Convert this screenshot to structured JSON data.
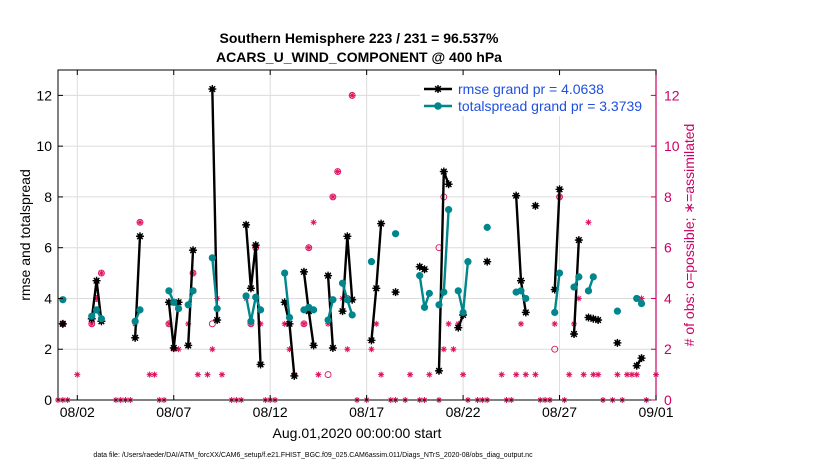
{
  "chart_data": {
    "type": "line",
    "title": "Southern Hemisphere 223 / 231 = 96.537%",
    "subtitle": "ACARS_U_WIND_COMPONENT @ 400 hPa",
    "xlabel": "Aug.01,2020 00:00:00 start",
    "ylabel": "rmse and totalspread",
    "y2label": "# of obs: o=possible; ∗=assimilated",
    "footer": "data file: /Users/raeder/DAI/ATM_forcXX/CAM6_setup/f.e21.FHIST_BGC.f09_025.CAM6assim.011/Diags_NTrS_2020-08/obs_diag_output.nc",
    "xlim": [
      0,
      31
    ],
    "ylim": [
      0,
      13
    ],
    "y2lim": [
      0,
      13
    ],
    "xticks": [
      1,
      6,
      11,
      16,
      21,
      26,
      31
    ],
    "xtick_labels": [
      "08/02",
      "08/07",
      "08/12",
      "08/17",
      "08/22",
      "08/27",
      "09/01"
    ],
    "yticks": [
      0,
      2,
      4,
      6,
      8,
      10,
      12
    ],
    "ytick_labels": [
      "0",
      "2",
      "4",
      "6",
      "8",
      "10",
      "12"
    ],
    "y2ticks": [
      0,
      2,
      4,
      6,
      8,
      10,
      12
    ],
    "y2tick_labels": [
      "0",
      "2",
      "4",
      "6",
      "8",
      "10",
      "12"
    ],
    "grid": true,
    "legend_position": "top-right",
    "colors": {
      "rmse": "#000000",
      "spread": "#00868b",
      "obs": "#e0105f",
      "legend_text": "#1f4fe0",
      "right_axis": "#cc0066"
    },
    "series": [
      {
        "name": "rmse grand pr = 4.0638",
        "color": "#000000",
        "segments": [
          [
            [
              0.25,
              3.0
            ]
          ],
          [
            [
              1.75,
              3.2
            ],
            [
              2.0,
              4.7
            ],
            [
              2.25,
              3.1
            ]
          ],
          [
            [
              4.0,
              2.45
            ],
            [
              4.25,
              6.45
            ]
          ],
          [
            [
              5.75,
              3.85
            ],
            [
              6.0,
              2.05
            ],
            [
              6.25,
              3.85
            ]
          ],
          [
            [
              6.75,
              2.15
            ],
            [
              7.0,
              5.9
            ]
          ],
          [
            [
              8.0,
              12.25
            ],
            [
              8.25,
              3.15
            ]
          ],
          [
            [
              9.75,
              6.9
            ],
            [
              10.0,
              4.4
            ],
            [
              10.25,
              6.1
            ],
            [
              10.5,
              1.4
            ]
          ],
          [
            [
              11.75,
              3.85
            ],
            [
              12.0,
              3.0
            ],
            [
              12.25,
              0.95
            ]
          ],
          [
            [
              12.75,
              5.05
            ],
            [
              13.0,
              3.5
            ],
            [
              13.25,
              2.15
            ]
          ],
          [
            [
              14.0,
              4.9
            ],
            [
              14.25,
              2.05
            ]
          ],
          [
            [
              14.75,
              3.5
            ],
            [
              15.0,
              6.45
            ],
            [
              15.25,
              3.95
            ]
          ],
          [
            [
              16.25,
              2.35
            ],
            [
              16.5,
              4.4
            ],
            [
              16.75,
              6.95
            ]
          ],
          [
            [
              17.5,
              4.25
            ]
          ],
          [
            [
              18.75,
              5.25
            ],
            [
              19.0,
              5.15
            ]
          ],
          [
            [
              19.75,
              1.15
            ],
            [
              20.0,
              9.0
            ],
            [
              20.25,
              8.5
            ]
          ],
          [
            [
              20.75,
              2.85
            ],
            [
              21.0,
              3.35
            ]
          ],
          [
            [
              22.25,
              5.45
            ]
          ],
          [
            [
              23.75,
              8.05
            ],
            [
              24.0,
              4.7
            ],
            [
              24.25,
              3.45
            ]
          ],
          [
            [
              24.75,
              7.65
            ]
          ],
          [
            [
              25.75,
              4.35
            ],
            [
              26.0,
              8.3
            ]
          ],
          [
            [
              26.75,
              2.6
            ],
            [
              27.0,
              6.3
            ]
          ],
          [
            [
              27.5,
              3.25
            ],
            [
              27.75,
              3.2
            ],
            [
              28.0,
              3.15
            ]
          ],
          [
            [
              29.0,
              2.25
            ]
          ],
          [
            [
              30.0,
              1.35
            ],
            [
              30.25,
              1.65
            ]
          ]
        ]
      },
      {
        "name": "totalspread grand pr = 3.3739",
        "color": "#00868b",
        "segments": [
          [
            [
              0.25,
              3.95
            ]
          ],
          [
            [
              1.75,
              3.3
            ],
            [
              2.0,
              3.55
            ],
            [
              2.25,
              3.2
            ]
          ],
          [
            [
              4.0,
              3.1
            ],
            [
              4.25,
              3.55
            ]
          ],
          [
            [
              5.75,
              4.3
            ],
            [
              6.0,
              3.85
            ],
            [
              6.25,
              3.6
            ]
          ],
          [
            [
              6.75,
              3.75
            ],
            [
              7.0,
              4.3
            ]
          ],
          [
            [
              8.0,
              5.6
            ],
            [
              8.25,
              3.6
            ]
          ],
          [
            [
              9.75,
              4.1
            ],
            [
              10.0,
              3.1
            ],
            [
              10.25,
              4.05
            ],
            [
              10.5,
              3.55
            ]
          ],
          [
            [
              11.75,
              5.0
            ],
            [
              12.0,
              3.25
            ]
          ],
          [
            [
              12.75,
              3.55
            ],
            [
              13.0,
              3.65
            ],
            [
              13.25,
              3.55
            ]
          ],
          [
            [
              14.0,
              3.15
            ],
            [
              14.25,
              3.95
            ]
          ],
          [
            [
              14.75,
              4.6
            ],
            [
              15.0,
              3.95
            ],
            [
              15.25,
              3.35
            ]
          ],
          [
            [
              16.25,
              5.45
            ]
          ],
          [
            [
              17.5,
              6.55
            ]
          ],
          [
            [
              18.75,
              4.9
            ],
            [
              19.0,
              3.65
            ],
            [
              19.25,
              4.2
            ]
          ],
          [
            [
              19.75,
              3.75
            ],
            [
              20.0,
              4.25
            ],
            [
              20.25,
              7.5
            ]
          ],
          [
            [
              20.75,
              4.3
            ],
            [
              21.0,
              3.45
            ],
            [
              21.25,
              5.45
            ]
          ],
          [
            [
              22.25,
              6.8
            ]
          ],
          [
            [
              23.75,
              4.25
            ],
            [
              24.0,
              4.3
            ],
            [
              24.25,
              4.0
            ]
          ],
          [
            [
              25.75,
              3.45
            ],
            [
              26.0,
              5.0
            ]
          ],
          [
            [
              26.75,
              4.45
            ],
            [
              27.0,
              4.85
            ]
          ],
          [
            [
              27.5,
              4.3
            ],
            [
              27.75,
              4.85
            ]
          ],
          [
            [
              29.0,
              3.5
            ]
          ],
          [
            [
              30.0,
              4.0
            ],
            [
              30.25,
              3.8
            ]
          ]
        ]
      }
    ],
    "obs_possible": [
      [
        0.25,
        3.0
      ],
      [
        1.75,
        3.0
      ],
      [
        2.0,
        4.0
      ],
      [
        2.25,
        5.0
      ],
      [
        4.25,
        7.0
      ],
      [
        5.75,
        3.0
      ],
      [
        7.0,
        5.0
      ],
      [
        8.0,
        3.0
      ],
      [
        10.0,
        3.0
      ],
      [
        10.25,
        6.0
      ],
      [
        12.75,
        3.0
      ],
      [
        13.0,
        6.0
      ],
      [
        14.0,
        1.0
      ],
      [
        14.25,
        8.0
      ],
      [
        14.5,
        9.0
      ],
      [
        15.0,
        4.0
      ],
      [
        15.25,
        12.0
      ],
      [
        19.75,
        6.0
      ],
      [
        20.0,
        8.0
      ],
      [
        25.75,
        2.0
      ],
      [
        26.0,
        8.0
      ]
    ],
    "obs_assimilated": [
      [
        0.0,
        0
      ],
      [
        0.25,
        0
      ],
      [
        0.5,
        0
      ],
      [
        1.0,
        1
      ],
      [
        1.75,
        3
      ],
      [
        2.0,
        4
      ],
      [
        2.25,
        5
      ],
      [
        3.0,
        0
      ],
      [
        3.25,
        0
      ],
      [
        3.5,
        0
      ],
      [
        3.75,
        0
      ],
      [
        4.0,
        3
      ],
      [
        4.25,
        7
      ],
      [
        4.75,
        1
      ],
      [
        5.0,
        1
      ],
      [
        5.25,
        0
      ],
      [
        5.5,
        0
      ],
      [
        5.75,
        3
      ],
      [
        6.0,
        2
      ],
      [
        6.25,
        2
      ],
      [
        6.75,
        3
      ],
      [
        7.0,
        5
      ],
      [
        7.25,
        1
      ],
      [
        7.75,
        1
      ],
      [
        8.0,
        2
      ],
      [
        8.25,
        4
      ],
      [
        8.5,
        1
      ],
      [
        9.0,
        0
      ],
      [
        9.25,
        0
      ],
      [
        9.5,
        0
      ],
      [
        9.75,
        4
      ],
      [
        10.0,
        3
      ],
      [
        10.25,
        6
      ],
      [
        10.5,
        3
      ],
      [
        10.75,
        0
      ],
      [
        11.0,
        0
      ],
      [
        11.25,
        0
      ],
      [
        11.75,
        3
      ],
      [
        12.0,
        2
      ],
      [
        12.25,
        1
      ],
      [
        12.75,
        3
      ],
      [
        13.0,
        6
      ],
      [
        13.25,
        7
      ],
      [
        13.5,
        1
      ],
      [
        14.0,
        3
      ],
      [
        14.25,
        8
      ],
      [
        14.5,
        9
      ],
      [
        14.75,
        4
      ],
      [
        15.0,
        2
      ],
      [
        15.25,
        12
      ],
      [
        15.5,
        0
      ],
      [
        16.0,
        0
      ],
      [
        16.25,
        2
      ],
      [
        16.5,
        3
      ],
      [
        16.75,
        1
      ],
      [
        17.25,
        0
      ],
      [
        17.5,
        0
      ],
      [
        18.0,
        0
      ],
      [
        18.25,
        1
      ],
      [
        18.75,
        0
      ],
      [
        19.0,
        0
      ],
      [
        19.25,
        1
      ],
      [
        19.75,
        0
      ],
      [
        20.0,
        2
      ],
      [
        20.25,
        3
      ],
      [
        20.5,
        2
      ],
      [
        20.75,
        3
      ],
      [
        21.0,
        1
      ],
      [
        21.25,
        0
      ],
      [
        21.75,
        0
      ],
      [
        22.0,
        0
      ],
      [
        22.25,
        0
      ],
      [
        23.0,
        1
      ],
      [
        23.25,
        0
      ],
      [
        23.5,
        0
      ],
      [
        23.75,
        1
      ],
      [
        24.0,
        3
      ],
      [
        24.25,
        1
      ],
      [
        24.75,
        1
      ],
      [
        25.0,
        0
      ],
      [
        25.25,
        0
      ],
      [
        25.5,
        0
      ],
      [
        25.75,
        3
      ],
      [
        26.0,
        8
      ],
      [
        26.25,
        0
      ],
      [
        26.5,
        1
      ],
      [
        26.75,
        3
      ],
      [
        27.0,
        4
      ],
      [
        27.25,
        1
      ],
      [
        27.5,
        7
      ],
      [
        27.75,
        1
      ],
      [
        28.0,
        1
      ],
      [
        28.25,
        0
      ],
      [
        28.75,
        0
      ],
      [
        29.0,
        1
      ],
      [
        29.25,
        0
      ],
      [
        29.5,
        1
      ],
      [
        29.75,
        1
      ],
      [
        30.0,
        1
      ],
      [
        30.25,
        4
      ],
      [
        30.5,
        0
      ],
      [
        31.0,
        1
      ]
    ]
  }
}
